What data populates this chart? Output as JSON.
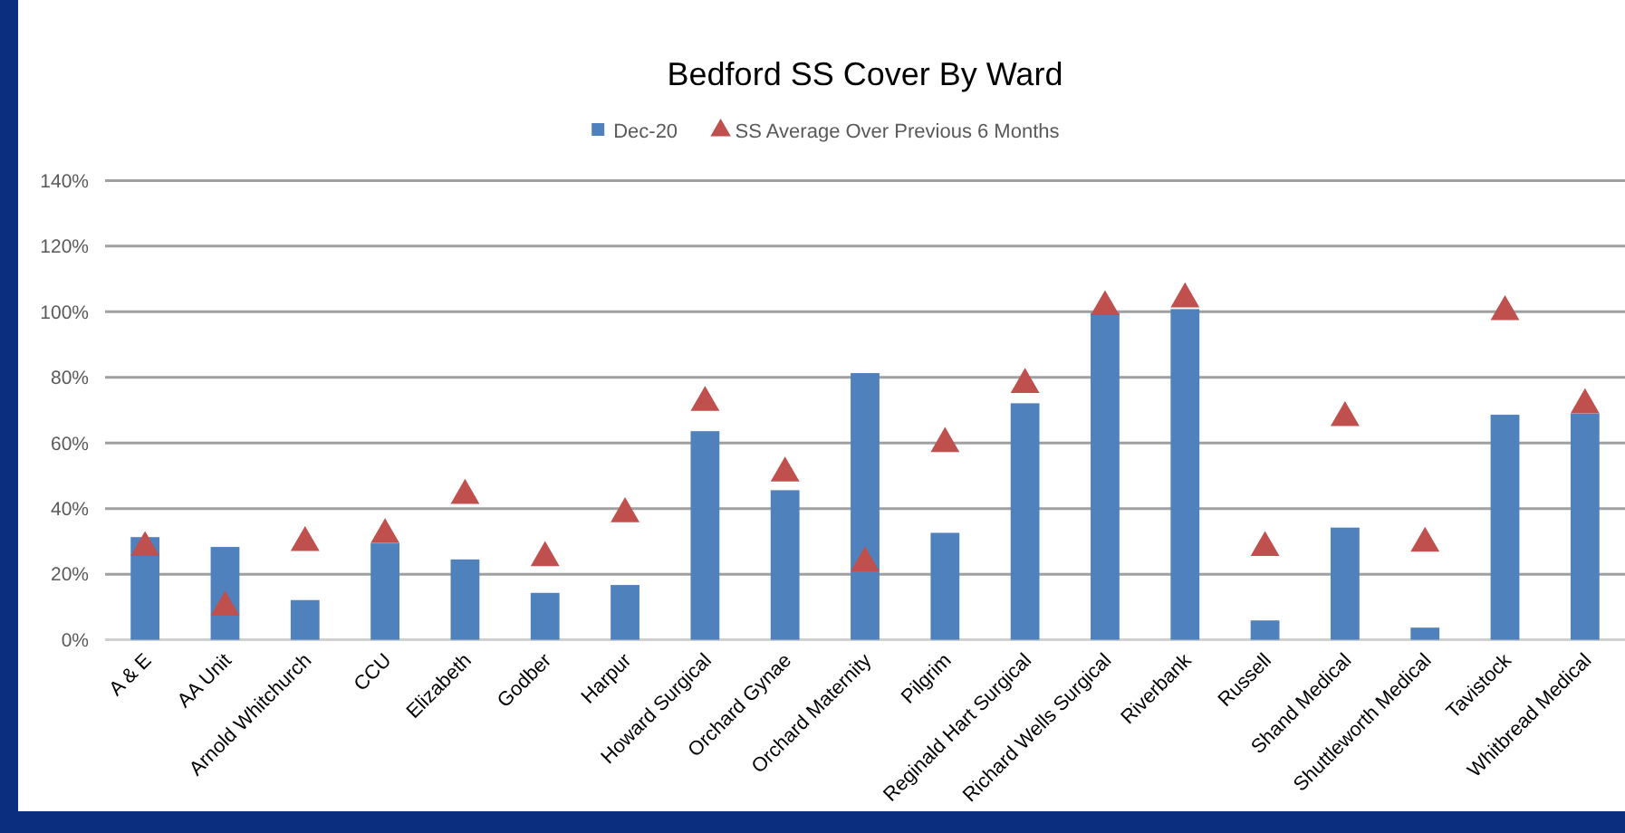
{
  "chart_data": {
    "type": "bar",
    "title": "Bedford SS Cover By Ward",
    "categories": [
      "A & E",
      "AA Unit",
      "Arnold Whitchurch",
      "CCU",
      "Elizabeth",
      "Godber",
      "Harpur",
      "Howard Surgical",
      "Orchard Gynae",
      "Orchard Maternity",
      "Pilgrim",
      "Reginald Hart Surgical",
      "Richard Wells Surgical",
      "Riverbank",
      "Russell",
      "Shand Medical",
      "Shuttleworth Medical",
      "Tavistock",
      "Whitbread Medical"
    ],
    "series": [
      {
        "name": "Dec-20",
        "color": "#4f81bd",
        "values": [
          31.3,
          28.3,
          12.1,
          29.4,
          24.5,
          14.3,
          16.7,
          63.6,
          45.6,
          81.3,
          32.6,
          72.1,
          99.7,
          100.8,
          5.9,
          34.2,
          3.7,
          68.6,
          69
        ]
      },
      {
        "name": "SS Average Over Previous 6 Months",
        "type": "scatter",
        "marker": "triangle",
        "color": "#c0504d",
        "values": [
          28.1,
          9.9,
          29.6,
          32,
          44,
          25,
          38.4,
          72.3,
          50.8,
          23.4,
          59.8,
          77.8,
          101.5,
          103.9,
          28.1,
          67.7,
          29.4,
          100,
          71.6
        ]
      }
    ],
    "ylim": [
      0,
      140
    ],
    "yticks": [
      {
        "value": 0,
        "label": "0%"
      },
      {
        "value": 20,
        "label": "20%"
      },
      {
        "value": 40,
        "label": "40%"
      },
      {
        "value": 60,
        "label": "60%"
      },
      {
        "value": 80,
        "label": "80%"
      },
      {
        "value": 100,
        "label": "100%"
      },
      {
        "value": 120,
        "label": "120%"
      },
      {
        "value": 140,
        "label": "140%"
      }
    ],
    "grid": "y",
    "legend": "top"
  }
}
